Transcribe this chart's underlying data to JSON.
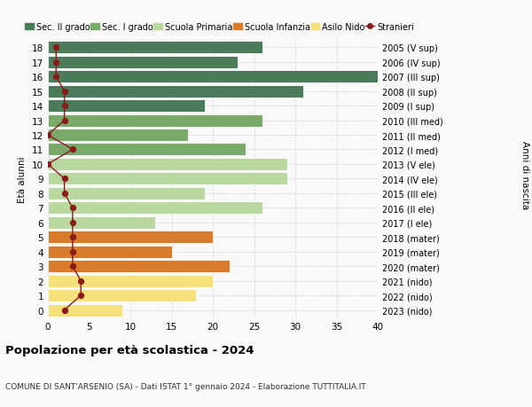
{
  "ages": [
    18,
    17,
    16,
    15,
    14,
    13,
    12,
    11,
    10,
    9,
    8,
    7,
    6,
    5,
    4,
    3,
    2,
    1,
    0
  ],
  "right_labels": [
    "2005 (V sup)",
    "2006 (IV sup)",
    "2007 (III sup)",
    "2008 (II sup)",
    "2009 (I sup)",
    "2010 (III med)",
    "2011 (II med)",
    "2012 (I med)",
    "2013 (V ele)",
    "2014 (IV ele)",
    "2015 (III ele)",
    "2016 (II ele)",
    "2017 (I ele)",
    "2018 (mater)",
    "2019 (mater)",
    "2020 (mater)",
    "2021 (nido)",
    "2022 (nido)",
    "2023 (nido)"
  ],
  "bar_values": [
    26,
    23,
    40,
    31,
    19,
    26,
    17,
    24,
    29,
    29,
    19,
    26,
    13,
    20,
    15,
    22,
    20,
    18,
    9
  ],
  "bar_colors": [
    "#4a7c59",
    "#4a7c59",
    "#4a7c59",
    "#4a7c59",
    "#4a7c59",
    "#7aaa6a",
    "#7aaa6a",
    "#7aaa6a",
    "#b8d8a0",
    "#b8d8a0",
    "#b8d8a0",
    "#b8d8a0",
    "#b8d8a0",
    "#d97b2a",
    "#d97b2a",
    "#d97b2a",
    "#f5e07a",
    "#f5e07a",
    "#f5e07a"
  ],
  "stranieri_values": [
    1,
    1,
    1,
    2,
    2,
    2,
    0,
    3,
    0,
    2,
    2,
    3,
    3,
    3,
    3,
    3,
    4,
    4,
    2
  ],
  "legend_labels": [
    "Sec. II grado",
    "Sec. I grado",
    "Scuola Primaria",
    "Scuola Infanzia",
    "Asilo Nido",
    "Stranieri"
  ],
  "legend_colors": [
    "#4a7c59",
    "#7aaa6a",
    "#b8d8a0",
    "#d97b2a",
    "#f5e07a",
    "#8b1a1a"
  ],
  "title": "Popolazione per età scolastica - 2024",
  "subtitle": "COMUNE DI SANT'ARSENIO (SA) - Dati ISTAT 1° gennaio 2024 - Elaborazione TUTTITALIA.IT",
  "xlabel_left": "Età alunni",
  "ylabel_right": "Anni di nascita",
  "xlim": [
    0,
    40
  ],
  "background_color": "#f9f9f9",
  "grid_color": "#cccccc"
}
